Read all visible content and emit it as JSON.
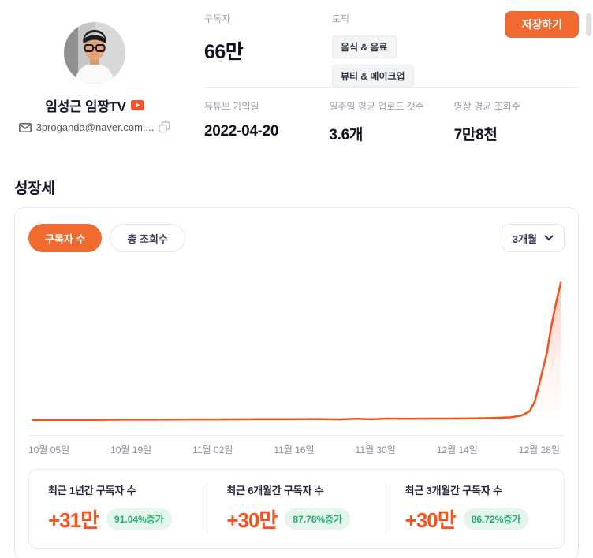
{
  "profile": {
    "channel_name": "임성근 임짱TV",
    "email": "3proganda@naver.com,..."
  },
  "icons": {
    "verified": "youtube-play-icon",
    "email": "envelope-icon",
    "copy": "copy-icon",
    "period": "chevron-down-icon"
  },
  "save_button": "저장하기",
  "stats": {
    "subscribers": {
      "label": "구독자",
      "value": "66만"
    },
    "topics": {
      "label": "토픽",
      "tags": [
        "음식 & 음료",
        "뷰티 & 메이크업"
      ]
    },
    "joined": {
      "label": "유튜브 가입일",
      "value": "2022-04-20"
    },
    "weekly_uploads": {
      "label": "일주일 평균 업로드 갯수",
      "value": "3.6개"
    },
    "avg_views": {
      "label": "영상 평균 조회수",
      "value": "7만8천"
    }
  },
  "growth": {
    "title": "성장세",
    "tabs": [
      {
        "label": "구독자 수",
        "active": true
      },
      {
        "label": "총 조회수",
        "active": false
      }
    ],
    "period": "3개월",
    "summary": [
      {
        "label": "최근 1년간 구독자 수",
        "value": "+31만",
        "badge": "91.04%증가"
      },
      {
        "label": "최근 6개월간 구독자 수",
        "value": "+30만",
        "badge": "87.78%증가"
      },
      {
        "label": "최근 3개월간 구독자 수",
        "value": "+30만",
        "badge": "86.72%증가"
      }
    ]
  },
  "chart_data": {
    "type": "area",
    "series_name": "구독자 수",
    "unit": "만",
    "x_ticks": [
      "10월 05일",
      "10월 19일",
      "11월 02일",
      "11월 16일",
      "11월 30일",
      "12월 14일",
      "12월 28일"
    ],
    "ylim": [
      34,
      67
    ],
    "grid": false,
    "line_color": "#f4511e",
    "points": [
      [
        0.008,
        34.6
      ],
      [
        0.06,
        34.6
      ],
      [
        0.12,
        34.6
      ],
      [
        0.18,
        34.65
      ],
      [
        0.24,
        34.65
      ],
      [
        0.3,
        34.7
      ],
      [
        0.36,
        34.7
      ],
      [
        0.42,
        34.75
      ],
      [
        0.48,
        34.75
      ],
      [
        0.54,
        34.8
      ],
      [
        0.58,
        34.7
      ],
      [
        0.61,
        34.85
      ],
      [
        0.64,
        34.75
      ],
      [
        0.67,
        34.9
      ],
      [
        0.71,
        34.85
      ],
      [
        0.75,
        34.9
      ],
      [
        0.79,
        34.9
      ],
      [
        0.83,
        34.95
      ],
      [
        0.87,
        35.05
      ],
      [
        0.9,
        35.2
      ],
      [
        0.92,
        35.6
      ],
      [
        0.935,
        36.6
      ],
      [
        0.945,
        39.0
      ],
      [
        0.955,
        44.0
      ],
      [
        0.967,
        50.0
      ],
      [
        0.975,
        56.0
      ],
      [
        0.984,
        61.5
      ],
      [
        0.993,
        66.2
      ]
    ]
  }
}
